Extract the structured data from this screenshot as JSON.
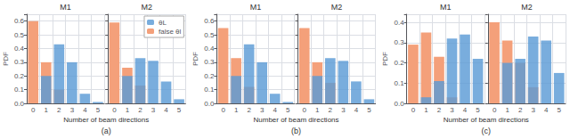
{
  "chart_data": [
    {
      "type": "bar",
      "title": "M1",
      "ylabel": "PDF",
      "xlabel": "Number of beam directions",
      "annotations": [
        "(a)"
      ],
      "categories": [
        "0",
        "1",
        "2",
        "3",
        "4",
        "5"
      ],
      "series": [
        {
          "name": "θL",
          "color": "#5b9bd5",
          "values": [
            0.0,
            0.2,
            0.43,
            0.3,
            0.07,
            0.01
          ]
        },
        {
          "name": "false θl",
          "color": "#f4a07a",
          "values": [
            0.6,
            0.3,
            0.1,
            0.0,
            0.0,
            0.0
          ]
        }
      ],
      "ylim": [
        0,
        0.65
      ],
      "yticks": [
        {
          "value": 0,
          "label": "0.0"
        },
        0.1,
        0.2,
        0.3,
        0.4,
        0.5,
        0.6
      ],
      "grid": true
    },
    {
      "type": "bar",
      "title": "M2",
      "categories": [
        "0",
        "1",
        "2",
        "3",
        "4",
        "5"
      ],
      "series": [
        {
          "name": "θL",
          "color": "#5b9bd5",
          "values": [
            0.0,
            0.2,
            0.33,
            0.31,
            0.16,
            0.03
          ]
        },
        {
          "name": "false θl",
          "color": "#f4a07a",
          "values": [
            0.59,
            0.26,
            0.13,
            0.0,
            0.0,
            0.0
          ]
        }
      ],
      "ylim": [
        0,
        0.65
      ],
      "yticks": [
        0,
        0.1,
        0.2,
        0.3,
        0.4,
        0.5,
        0.6
      ],
      "tick_labels": "x",
      "legend": "upper right",
      "grid": true
    },
    {
      "type": "bar",
      "title": "M1",
      "ylabel": "PDF",
      "xlabel": "Number of beam directions",
      "annotations": [
        "(b)"
      ],
      "categories": [
        "0",
        "1",
        "2",
        "3",
        "4",
        "5"
      ],
      "series": [
        {
          "name": "θL",
          "color": "#5b9bd5",
          "values": [
            0.0,
            0.2,
            0.43,
            0.3,
            0.07,
            0.01
          ]
        },
        {
          "name": "false θl",
          "color": "#f4a07a",
          "values": [
            0.55,
            0.33,
            0.12,
            0.0,
            0.0,
            0.0
          ]
        }
      ],
      "ylim": [
        0,
        0.65
      ],
      "yticks": [
        {
          "value": 0,
          "label": "0.0"
        },
        0.1,
        0.2,
        0.3,
        0.4,
        0.5,
        0.6
      ],
      "grid": true
    },
    {
      "type": "bar",
      "title": "M2",
      "categories": [
        "0",
        "1",
        "2",
        "3",
        "4",
        "5"
      ],
      "series": [
        {
          "name": "θL",
          "color": "#5b9bd5",
          "values": [
            0.0,
            0.2,
            0.33,
            0.31,
            0.16,
            0.03
          ]
        },
        {
          "name": "false θl",
          "color": "#f4a07a",
          "values": [
            0.55,
            0.3,
            0.15,
            0.0,
            0.0,
            0.0
          ]
        }
      ],
      "ylim": [
        0,
        0.65
      ],
      "yticks": [
        0,
        0.1,
        0.2,
        0.3,
        0.4,
        0.5,
        0.6
      ],
      "tick_labels": "x",
      "grid": true
    },
    {
      "type": "bar",
      "title": "M1",
      "ylabel": "PDF",
      "xlabel": "Number of beam directions",
      "annotations": [
        "(c)"
      ],
      "categories": [
        "0",
        "1",
        "2",
        "3",
        "4",
        "5"
      ],
      "series": [
        {
          "name": "θL",
          "color": "#5b9bd5",
          "values": [
            0.0,
            0.03,
            0.11,
            0.32,
            0.34,
            0.22
          ]
        },
        {
          "name": "false θl",
          "color": "#f4a07a",
          "values": [
            0.29,
            0.35,
            0.23,
            0.03,
            0.0,
            0.0
          ]
        }
      ],
      "ylim": [
        0,
        0.44
      ],
      "yticks": [
        {
          "value": 0,
          "label": "0.0"
        },
        0.1,
        0.2,
        0.3,
        0.4
      ],
      "grid": true
    },
    {
      "type": "bar",
      "title": "M2",
      "categories": [
        "0",
        "1",
        "2",
        "3",
        "4",
        "5"
      ],
      "series": [
        {
          "name": "θL",
          "color": "#5b9bd5",
          "values": [
            0.0,
            0.2,
            0.22,
            0.33,
            0.31,
            0.15
          ]
        },
        {
          "name": "false θl",
          "color": "#f4a07a",
          "values": [
            0.4,
            0.31,
            0.2,
            0.08,
            0.0,
            0.0
          ]
        }
      ],
      "ylim": [
        0,
        0.44
      ],
      "yticks": [
        0,
        0.1,
        0.2,
        0.3,
        0.4
      ],
      "tick_labels": "x",
      "grid": true
    }
  ]
}
